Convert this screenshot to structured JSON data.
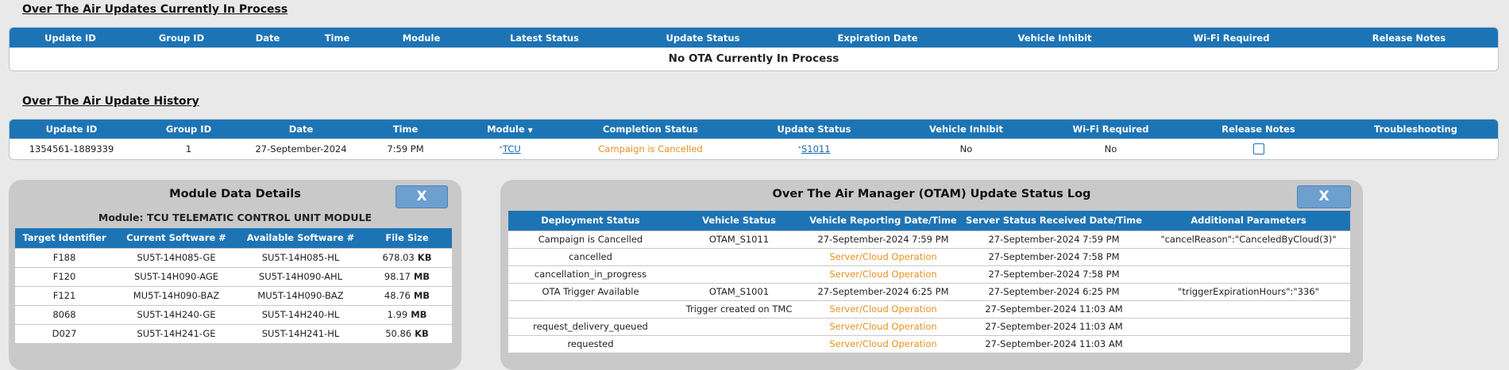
{
  "in_process": {
    "title": "Over The Air Updates Currently In Process",
    "columns": [
      "Update ID",
      "Group ID",
      "Date",
      "Time",
      "Module",
      "Latest Status",
      "Update Status",
      "Expiration Date",
      "Vehicle Inhibit",
      "Wi-Fi Required",
      "Release Notes"
    ],
    "empty_message": "No OTA Currently In Process"
  },
  "history": {
    "title": "Over The Air Update History",
    "columns": [
      "Update ID",
      "Group ID",
      "Date",
      "Time",
      "Module",
      "Completion Status",
      "Update Status",
      "Vehicle Inhibit",
      "Wi-Fi Required",
      "Release Notes",
      "Troubleshooting"
    ],
    "rows": [
      {
        "update_id": "1354561-1889339",
        "group_id": "1",
        "date": "27-September-2024",
        "time": "7:59 PM",
        "module": "TCU",
        "completion_status": "Campaign is Cancelled",
        "update_status": "S1011",
        "vehicle_inhibit": "No",
        "wifi_required": "No"
      }
    ]
  },
  "module_details": {
    "title": "Module Data Details",
    "close": "X",
    "module_label": "Module: TCU TELEMATIC CONTROL UNIT MODULE",
    "columns": [
      "Target Identifier",
      "Current Software #",
      "Available Software #",
      "File Size"
    ],
    "rows": [
      {
        "target": "F188",
        "current": "SU5T-14H085-GE",
        "available": "SU5T-14H085-HL",
        "size": "678.03",
        "unit": "KB"
      },
      {
        "target": "F120",
        "current": "SU5T-14H090-AGE",
        "available": "SU5T-14H090-AHL",
        "size": "98.17",
        "unit": "MB"
      },
      {
        "target": "F121",
        "current": "MU5T-14H090-BAZ",
        "available": "MU5T-14H090-BAZ",
        "size": "48.76",
        "unit": "MB"
      },
      {
        "target": "8068",
        "current": "SU5T-14H240-GE",
        "available": "SU5T-14H240-HL",
        "size": "1.99",
        "unit": "MB"
      },
      {
        "target": "D027",
        "current": "SU5T-14H241-GE",
        "available": "SU5T-14H241-HL",
        "size": "50.86",
        "unit": "KB"
      }
    ]
  },
  "status_log": {
    "title": "Over The Air Manager (OTAM) Update Status Log",
    "close": "X",
    "columns": [
      "Deployment Status",
      "Vehicle Status",
      "Vehicle Reporting Date/Time",
      "Server Status Received Date/Time",
      "Additional Parameters"
    ],
    "rows": [
      {
        "deployment": "Campaign is Cancelled",
        "vehicle": "OTAM_S1011",
        "reporting": "27-September-2024 7:59 PM",
        "server": "27-September-2024 7:59 PM",
        "params": "\"cancelReason\":\"CanceledByCloud(3)\""
      },
      {
        "deployment": "cancelled",
        "reporting": "Server/Cloud Operation",
        "server": "27-September-2024 7:58 PM"
      },
      {
        "deployment": "cancellation_in_progress",
        "reporting": "Server/Cloud Operation",
        "server": "27-September-2024 7:58 PM"
      },
      {
        "deployment": "OTA Trigger Available",
        "vehicle": "OTAM_S1001",
        "reporting": "27-September-2024 6:25 PM",
        "server": "27-September-2024 6:25 PM",
        "params": "\"triggerExpirationHours\":\"336\""
      },
      {
        "vehicle": "Trigger created on TMC",
        "reporting": "Server/Cloud Operation",
        "server": "27-September-2024 11:03 AM"
      },
      {
        "deployment": "request_delivery_queued",
        "reporting": "Server/Cloud Operation",
        "server": "27-September-2024 11:03 AM"
      },
      {
        "deployment": "requested",
        "reporting": "Server/Cloud Operation",
        "server": "27-September-2024 11:03 AM"
      }
    ]
  }
}
